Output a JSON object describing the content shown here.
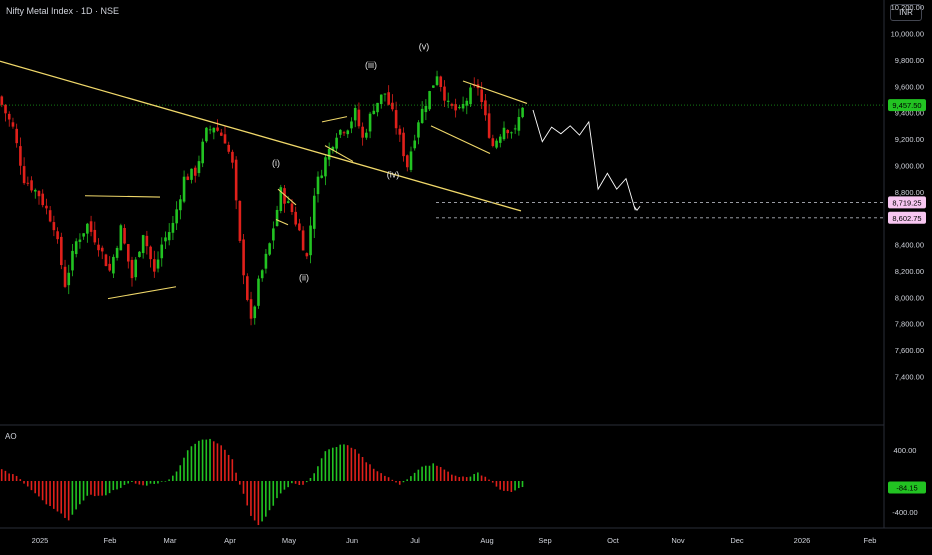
{
  "header": {
    "title": "Nifty Metal Index · 1D · NSE",
    "currency": "INR"
  },
  "chart_data": [
    {
      "type": "candlestick",
      "title": "Nifty Metal Index · 1D · NSE",
      "y_ticks": [
        7400,
        7600,
        7800,
        8000,
        8200,
        8400,
        8600,
        8800,
        9000,
        9200,
        9400,
        9600,
        9800,
        10000,
        10200
      ],
      "ylim": [
        7330,
        10270
      ],
      "x_ticks": [
        "2025",
        "Feb",
        "Mar",
        "Apr",
        "May",
        "Jun",
        "Jul",
        "Aug",
        "Sep",
        "Oct",
        "Nov",
        "Dec",
        "2026",
        "Feb"
      ],
      "last_price": "9,457.50",
      "price_labels": [
        "8,719.25",
        "8,602.75"
      ],
      "wave_labels": [
        "(i)",
        "(ii)",
        "(iii)",
        "(iv)",
        "(v)"
      ],
      "colors": {
        "up": "#22c322",
        "down": "#e0201b",
        "trendline": "#f0d86a",
        "last_price": "#22c322",
        "target_label_bg": "#f7c6f1"
      },
      "anchors": [
        {
          "i": 0,
          "c": 9460
        },
        {
          "i": 3,
          "c": 9280
        },
        {
          "i": 6,
          "c": 8900
        },
        {
          "i": 10,
          "c": 8780
        },
        {
          "i": 14,
          "c": 8550
        },
        {
          "i": 17,
          "c": 8100
        },
        {
          "i": 20,
          "c": 8420
        },
        {
          "i": 23,
          "c": 8550
        },
        {
          "i": 26,
          "c": 8400
        },
        {
          "i": 29,
          "c": 8200
        },
        {
          "i": 32,
          "c": 8520
        },
        {
          "i": 35,
          "c": 8150
        },
        {
          "i": 38,
          "c": 8500
        },
        {
          "i": 41,
          "c": 8180
        },
        {
          "i": 43,
          "c": 8400
        },
        {
          "i": 46,
          "c": 8550
        },
        {
          "i": 49,
          "c": 8900
        },
        {
          "i": 52,
          "c": 8950
        },
        {
          "i": 55,
          "c": 9250
        },
        {
          "i": 57,
          "c": 9300
        },
        {
          "i": 60,
          "c": 9200
        },
        {
          "i": 62,
          "c": 9000
        },
        {
          "i": 64,
          "c": 8400
        },
        {
          "i": 67,
          "c": 7800
        },
        {
          "i": 69,
          "c": 8100
        },
        {
          "i": 72,
          "c": 8400
        },
        {
          "i": 75,
          "c": 8800
        },
        {
          "i": 78,
          "c": 8650
        },
        {
          "i": 80,
          "c": 8500
        },
        {
          "i": 82,
          "c": 8300
        },
        {
          "i": 84,
          "c": 8800
        },
        {
          "i": 87,
          "c": 9050
        },
        {
          "i": 90,
          "c": 9250
        },
        {
          "i": 93,
          "c": 9300
        },
        {
          "i": 95,
          "c": 9400
        },
        {
          "i": 97,
          "c": 9200
        },
        {
          "i": 100,
          "c": 9450
        },
        {
          "i": 103,
          "c": 9550
        },
        {
          "i": 106,
          "c": 9300
        },
        {
          "i": 109,
          "c": 9000
        },
        {
          "i": 112,
          "c": 9350
        },
        {
          "i": 115,
          "c": 9550
        },
        {
          "i": 117,
          "c": 9700
        },
        {
          "i": 120,
          "c": 9450
        },
        {
          "i": 123,
          "c": 9400
        },
        {
          "i": 126,
          "c": 9550
        },
        {
          "i": 128,
          "c": 9600
        },
        {
          "i": 130,
          "c": 9350
        },
        {
          "i": 132,
          "c": 9150
        },
        {
          "i": 135,
          "c": 9300
        },
        {
          "i": 138,
          "c": 9250
        },
        {
          "i": 140,
          "c": 9460
        }
      ],
      "projection": [
        9420,
        9180,
        9290,
        9240,
        9300,
        9230,
        9330,
        8820,
        8940,
        8820,
        8900,
        8660
      ]
    },
    {
      "type": "bar",
      "name": "AO",
      "title": "AO",
      "y_ticks": [
        400,
        -400
      ],
      "ylim": [
        -600,
        640
      ],
      "last_value": "-84.15",
      "anchors": [
        {
          "i": 0,
          "v": 150
        },
        {
          "i": 4,
          "v": 60
        },
        {
          "i": 8,
          "v": -120
        },
        {
          "i": 12,
          "v": -300
        },
        {
          "i": 15,
          "v": -400
        },
        {
          "i": 18,
          "v": -500
        },
        {
          "i": 20,
          "v": -380
        },
        {
          "i": 23,
          "v": -180
        },
        {
          "i": 27,
          "v": -200
        },
        {
          "i": 31,
          "v": -100
        },
        {
          "i": 35,
          "v": -20
        },
        {
          "i": 38,
          "v": -60
        },
        {
          "i": 41,
          "v": -30
        },
        {
          "i": 44,
          "v": -10
        },
        {
          "i": 47,
          "v": 120
        },
        {
          "i": 50,
          "v": 400
        },
        {
          "i": 53,
          "v": 520
        },
        {
          "i": 56,
          "v": 550
        },
        {
          "i": 59,
          "v": 470
        },
        {
          "i": 62,
          "v": 280
        },
        {
          "i": 64,
          "v": -40
        },
        {
          "i": 67,
          "v": -450
        },
        {
          "i": 69,
          "v": -580
        },
        {
          "i": 72,
          "v": -390
        },
        {
          "i": 75,
          "v": -150
        },
        {
          "i": 78,
          "v": -30
        },
        {
          "i": 81,
          "v": -60
        },
        {
          "i": 84,
          "v": 100
        },
        {
          "i": 87,
          "v": 380
        },
        {
          "i": 90,
          "v": 450
        },
        {
          "i": 92,
          "v": 480
        },
        {
          "i": 95,
          "v": 400
        },
        {
          "i": 98,
          "v": 250
        },
        {
          "i": 101,
          "v": 130
        },
        {
          "i": 104,
          "v": 40
        },
        {
          "i": 107,
          "v": -40
        },
        {
          "i": 110,
          "v": 60
        },
        {
          "i": 113,
          "v": 180
        },
        {
          "i": 116,
          "v": 220
        },
        {
          "i": 119,
          "v": 150
        },
        {
          "i": 122,
          "v": 60
        },
        {
          "i": 125,
          "v": 50
        },
        {
          "i": 128,
          "v": 100
        },
        {
          "i": 131,
          "v": 20
        },
        {
          "i": 134,
          "v": -110
        },
        {
          "i": 137,
          "v": -140
        },
        {
          "i": 140,
          "v": -84
        }
      ]
    }
  ]
}
